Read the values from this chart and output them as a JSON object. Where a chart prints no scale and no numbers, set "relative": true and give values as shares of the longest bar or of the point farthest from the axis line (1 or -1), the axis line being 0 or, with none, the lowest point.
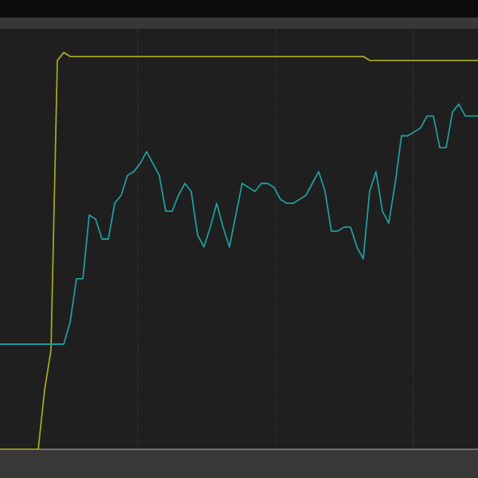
{
  "chart_data": {
    "type": "line",
    "relative": true,
    "grid": "x",
    "marker": "none",
    "line_style": "solid",
    "categories": [
      null,
      null,
      null,
      null,
      null,
      null,
      null,
      null,
      null,
      null,
      null,
      null,
      null,
      null,
      null,
      null,
      null,
      null,
      null,
      null,
      null,
      null,
      null,
      null,
      null,
      null,
      null,
      null,
      null,
      null,
      null,
      null,
      null,
      null,
      null,
      null,
      null,
      null,
      null,
      null,
      null,
      null,
      null,
      null,
      null,
      null,
      null,
      null,
      null,
      null,
      null,
      null,
      null,
      null,
      null,
      null,
      null,
      null,
      null,
      null,
      null,
      null,
      null,
      null,
      null,
      null,
      null,
      null,
      null,
      null,
      null,
      null,
      null,
      null,
      null,
      null
    ],
    "series": [
      {
        "color": "#a6a621",
        "values": [
          0,
          0,
          0,
          0,
          0,
          0,
          0,
          0.15,
          0.25,
          0.98,
          1.0,
          0.99,
          0.99,
          0.99,
          0.99,
          0.99,
          0.99,
          0.99,
          0.99,
          0.99,
          0.99,
          0.99,
          0.99,
          0.99,
          0.99,
          0.99,
          0.99,
          0.99,
          0.99,
          0.99,
          0.99,
          0.99,
          0.99,
          0.99,
          0.99,
          0.99,
          0.99,
          0.99,
          0.99,
          0.99,
          0.99,
          0.99,
          0.99,
          0.99,
          0.99,
          0.99,
          0.99,
          0.99,
          0.99,
          0.99,
          0.99,
          0.99,
          0.99,
          0.99,
          0.99,
          0.99,
          0.99,
          0.99,
          0.98,
          0.98,
          0.98,
          0.98,
          0.98,
          0.98,
          0.98,
          0.98,
          0.98,
          0.98,
          0.98,
          0.98,
          0.98,
          0.98,
          0.98,
          0.98,
          0.98,
          0.98
        ]
      },
      {
        "color": "#1f9c9c",
        "values": [
          0.265,
          0.265,
          0.265,
          0.265,
          0.265,
          0.265,
          0.265,
          0.265,
          0.265,
          0.265,
          0.265,
          0.32,
          0.43,
          0.43,
          0.59,
          0.58,
          0.53,
          0.53,
          0.62,
          0.64,
          0.69,
          0.7,
          0.72,
          0.75,
          0.72,
          0.69,
          0.6,
          0.6,
          0.64,
          0.67,
          0.65,
          0.54,
          0.51,
          0.56,
          0.62,
          0.56,
          0.51,
          0.59,
          0.67,
          0.66,
          0.65,
          0.67,
          0.67,
          0.66,
          0.63,
          0.62,
          0.62,
          0.63,
          0.64,
          0.67,
          0.7,
          0.65,
          0.55,
          0.55,
          0.56,
          0.56,
          0.51,
          0.48,
          0.65,
          0.7,
          0.6,
          0.57,
          0.67,
          0.79,
          0.79,
          0.8,
          0.81,
          0.84,
          0.84,
          0.76,
          0.76,
          0.85,
          0.87,
          0.84,
          0.84,
          0.84
        ]
      }
    ]
  }
}
